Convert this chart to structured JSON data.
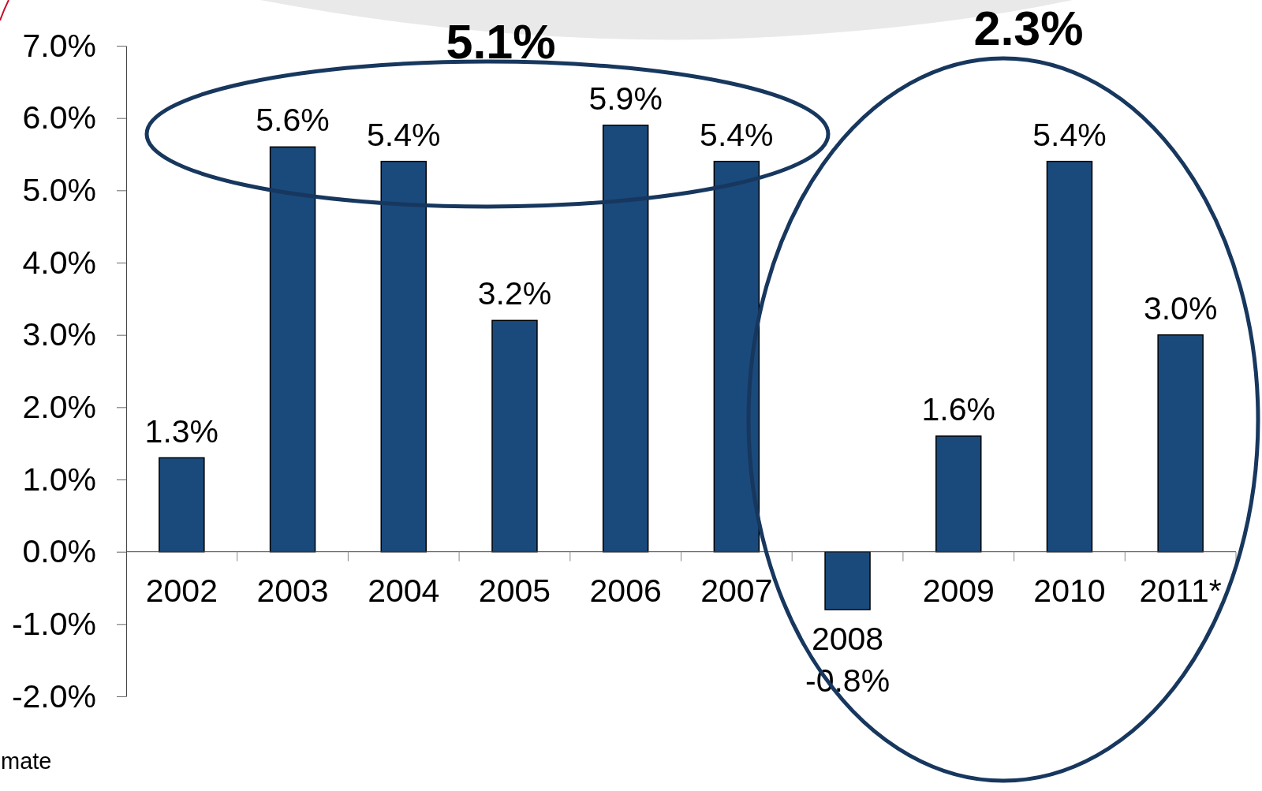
{
  "chart_data": {
    "type": "bar",
    "categories": [
      "2002",
      "2003",
      "2004",
      "2005",
      "2006",
      "2007",
      "2008",
      "2009",
      "2010",
      "2011*"
    ],
    "values": [
      1.3,
      5.6,
      5.4,
      3.2,
      5.9,
      5.4,
      -0.8,
      1.6,
      5.4,
      3.0
    ],
    "color": "#1a4a7c",
    "value_labels": [
      "1.3%",
      "5.6%",
      "5.4%",
      "3.2%",
      "5.9%",
      "5.4%",
      "-0.8%",
      "1.6%",
      "5.4%",
      "3.0%"
    ],
    "ylim": [
      -2,
      7
    ],
    "yticks": [
      {
        "value": -2,
        "label": "-2.0%"
      },
      {
        "value": -1,
        "label": "-1.0%"
      },
      {
        "value": 0,
        "label": "0.0%"
      },
      {
        "value": 1,
        "label": "1.0%"
      },
      {
        "value": 2,
        "label": "2.0%"
      },
      {
        "value": 3,
        "label": "3.0%"
      },
      {
        "value": 4,
        "label": "4.0%"
      },
      {
        "value": 5,
        "label": "5.0%"
      },
      {
        "value": 6,
        "label": "6.0%"
      },
      {
        "value": 7,
        "label": "7.0%"
      }
    ],
    "annotations": [
      "5.1%",
      "2.3%",
      "mate"
    ]
  }
}
